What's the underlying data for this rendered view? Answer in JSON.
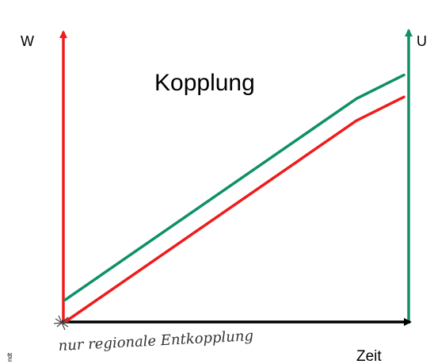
{
  "chart_data": {
    "type": "line",
    "title": "Kopplung",
    "xlabel": "Zeit",
    "ylabel_left": "W",
    "ylabel_right": "U",
    "annotation": "nur regionale Entkopplung",
    "side_note": "ndt",
    "grid": false,
    "legend": "none",
    "x": [
      0,
      1
    ],
    "series": [
      {
        "axis": "left",
        "color": "#ee1c1c",
        "values": [
          0,
          0.82
        ]
      },
      {
        "axis": "right",
        "color": "#0f9068",
        "values": [
          0.08,
          0.9
        ]
      }
    ],
    "colors": {
      "left_axis": "#ee1c1c",
      "right_axis": "#0f9068",
      "x_axis": "#000000"
    }
  }
}
